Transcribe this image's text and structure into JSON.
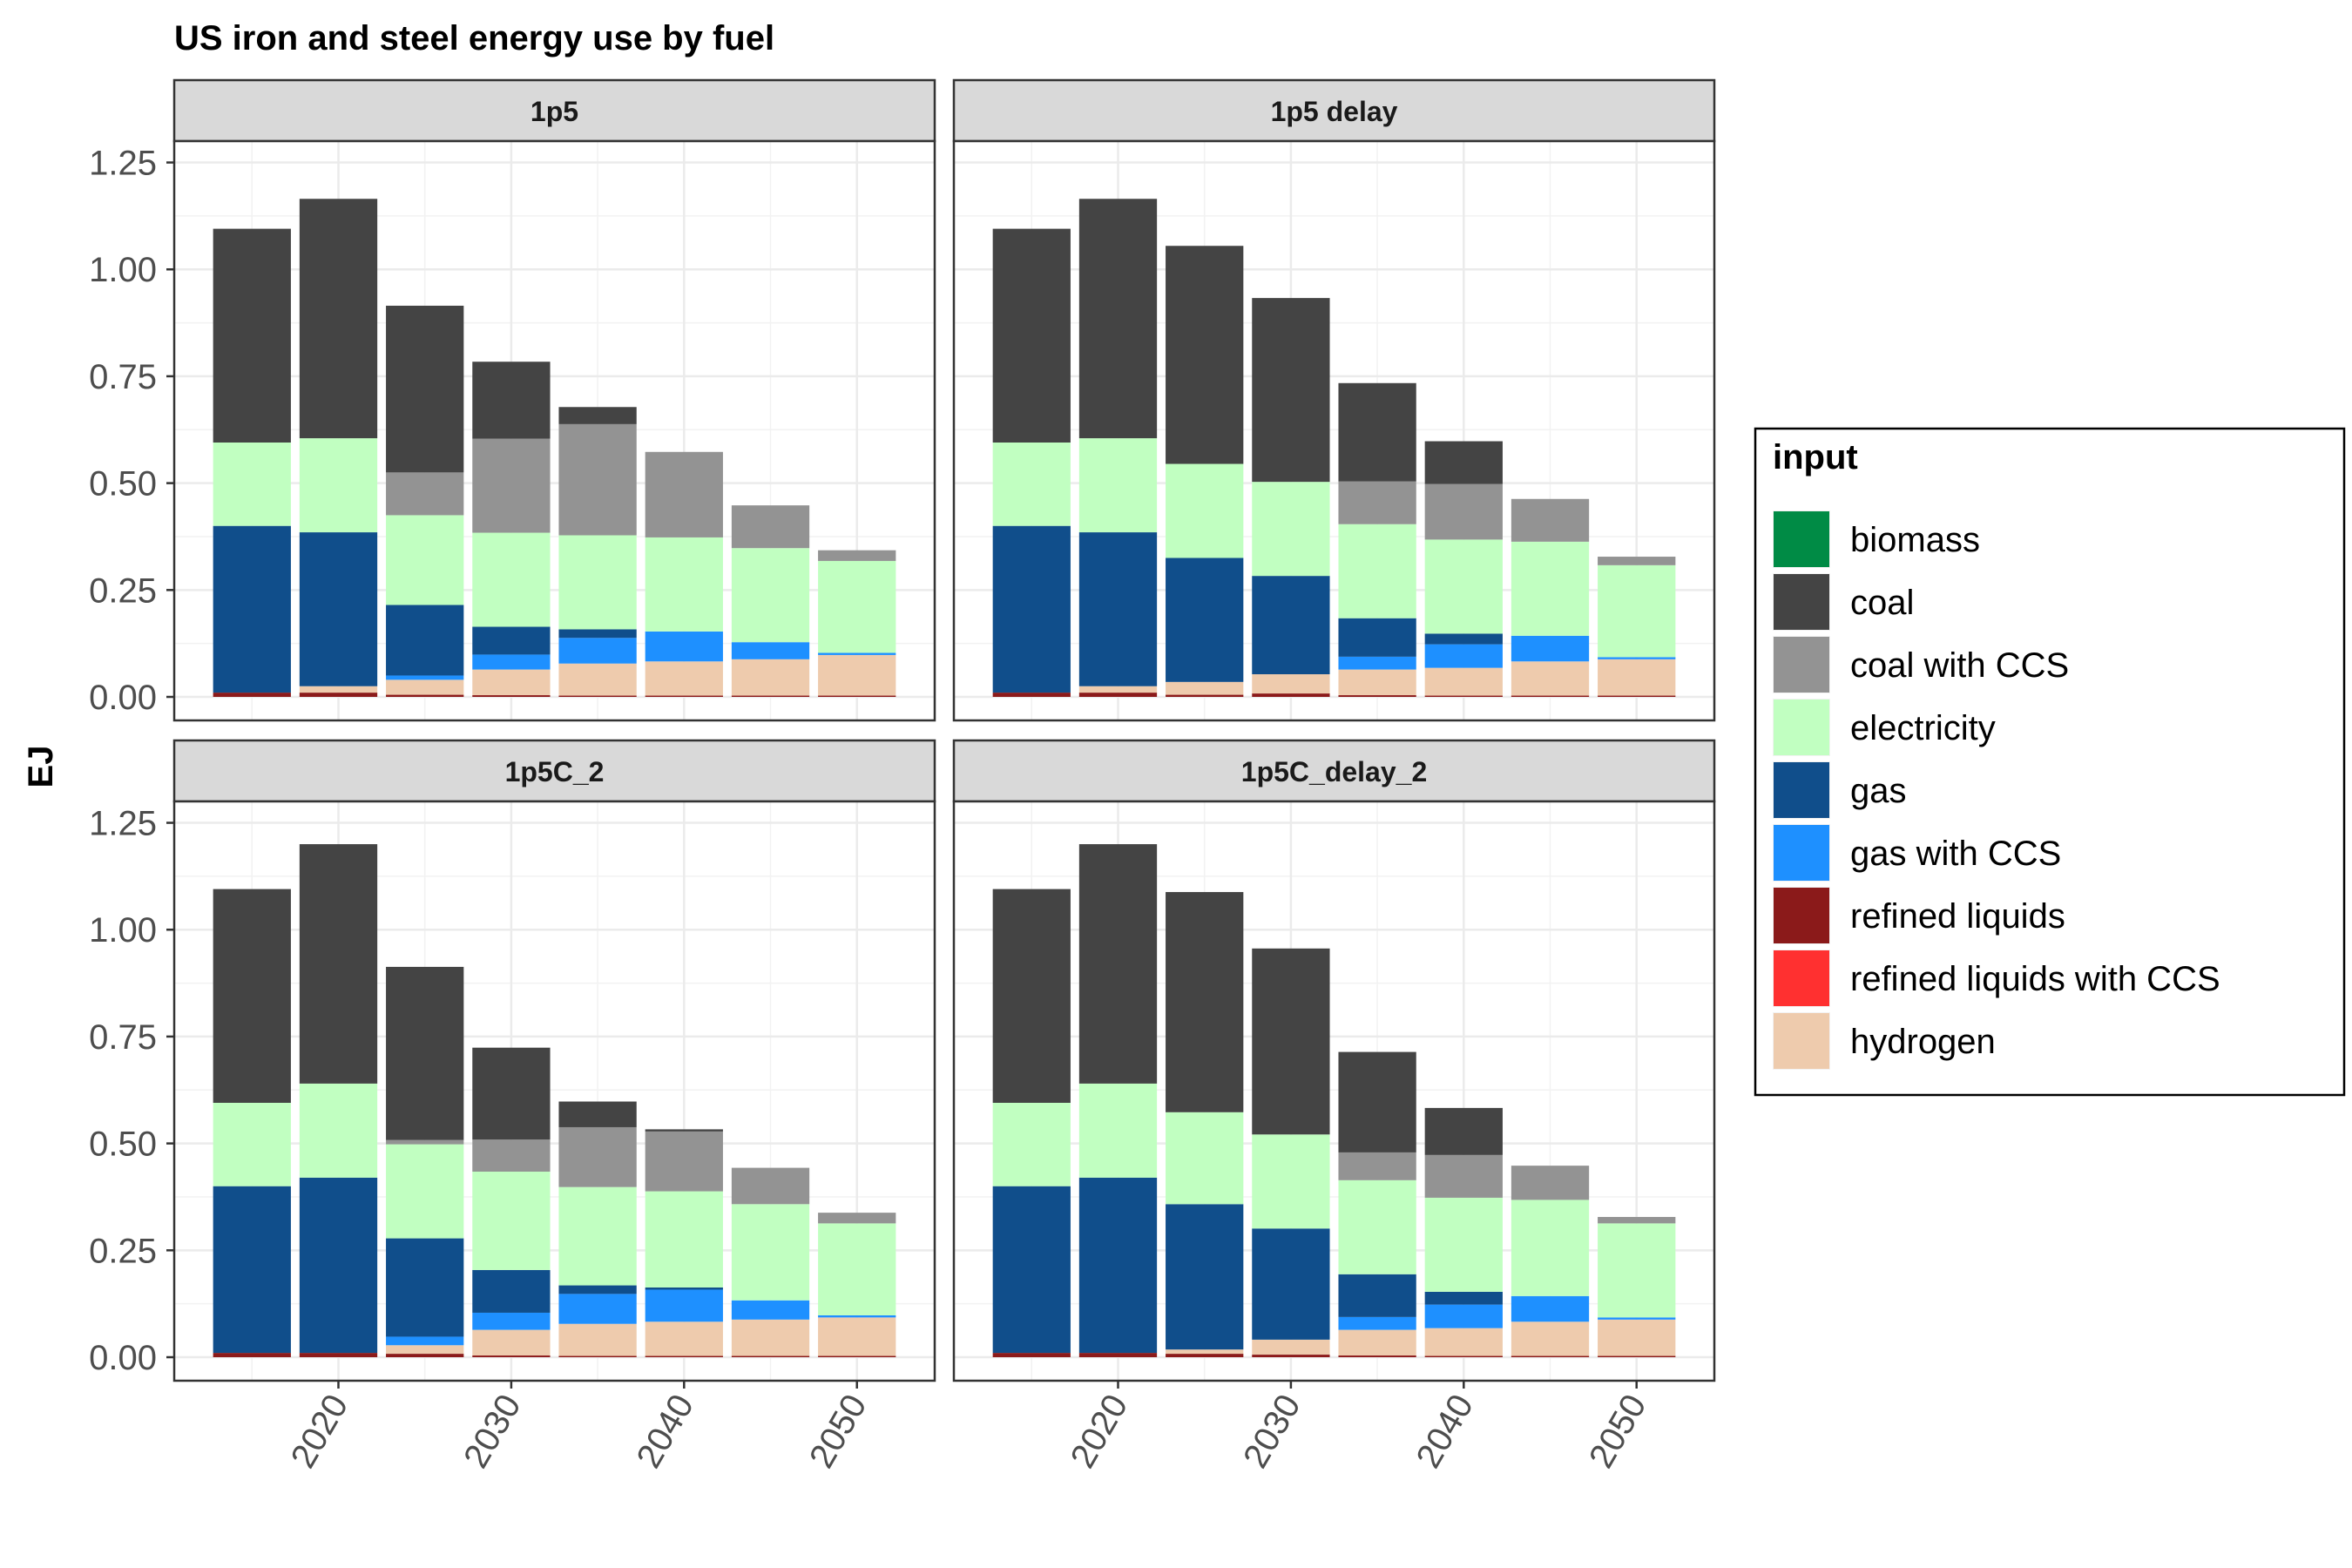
{
  "chart_data": {
    "type": "bar",
    "stacked": true,
    "faceted": true,
    "title": "US iron and steel energy use by fuel",
    "xlabel": "",
    "ylabel": "EJ",
    "legend_title": "input",
    "legend_position": "right",
    "x": [
      2015,
      2020,
      2025,
      2030,
      2035,
      2040,
      2045,
      2050
    ],
    "x_ticks": [
      "2020",
      "2030",
      "2040",
      "2050"
    ],
    "xlim": [
      2010.5,
      2054.5
    ],
    "y_ticks": [
      "0.00",
      "0.25",
      "0.50",
      "0.75",
      "1.00",
      "1.25"
    ],
    "ylim": [
      -0.055,
      1.3
    ],
    "grid": true,
    "series": [
      {
        "name": "biomass",
        "color": "#008B45"
      },
      {
        "name": "coal",
        "color": "#444444"
      },
      {
        "name": "coal with CCS",
        "color": "#939393"
      },
      {
        "name": "electricity",
        "color": "#C1FFC1"
      },
      {
        "name": "gas",
        "color": "#104E8B"
      },
      {
        "name": "gas with CCS",
        "color": "#1E90FF"
      },
      {
        "name": "refined liquids",
        "color": "#8B1A1A"
      },
      {
        "name": "refined liquids with CCS",
        "color": "#FF3030"
      },
      {
        "name": "hydrogen",
        "color": "#EECBAD"
      }
    ],
    "stack_order_bottom_to_top": [
      "refined liquids with CCS",
      "refined liquids",
      "hydrogen",
      "gas with CCS",
      "gas",
      "electricity",
      "coal with CCS",
      "coal",
      "biomass"
    ],
    "panels": [
      {
        "label": "1p5",
        "values": {
          "biomass": [
            0,
            0,
            0,
            0,
            0,
            0,
            0,
            0
          ],
          "coal": [
            0.5,
            0.56,
            0.39,
            0.18,
            0.04,
            0,
            0,
            0
          ],
          "coal with CCS": [
            0,
            0,
            0.1,
            0.22,
            0.26,
            0.2,
            0.1,
            0.025
          ],
          "electricity": [
            0.195,
            0.22,
            0.21,
            0.22,
            0.22,
            0.22,
            0.22,
            0.215
          ],
          "gas": [
            0.39,
            0.36,
            0.165,
            0.065,
            0.02,
            0,
            0,
            0
          ],
          "gas with CCS": [
            0,
            0,
            0.01,
            0.035,
            0.06,
            0.07,
            0.04,
            0.005
          ],
          "refined liquids": [
            0.01,
            0.01,
            0.005,
            0.004,
            0.003,
            0.003,
            0.003,
            0.003
          ],
          "refined liquids with CCS": [
            0,
            0,
            0,
            0,
            0,
            0,
            0,
            0
          ],
          "hydrogen": [
            0,
            0.015,
            0.035,
            0.06,
            0.075,
            0.08,
            0.085,
            0.095
          ]
        }
      },
      {
        "label": "1p5 delay",
        "values": {
          "biomass": [
            0,
            0,
            0,
            0,
            0,
            0,
            0,
            0
          ],
          "coal": [
            0.5,
            0.56,
            0.51,
            0.43,
            0.23,
            0.1,
            0,
            0
          ],
          "coal with CCS": [
            0,
            0,
            0,
            0,
            0.1,
            0.13,
            0.1,
            0.02
          ],
          "electricity": [
            0.195,
            0.22,
            0.22,
            0.22,
            0.22,
            0.22,
            0.22,
            0.215
          ],
          "gas": [
            0.39,
            0.36,
            0.29,
            0.23,
            0.09,
            0.025,
            0,
            0
          ],
          "gas with CCS": [
            0,
            0,
            0,
            0,
            0.03,
            0.055,
            0.06,
            0.005
          ],
          "refined liquids": [
            0.01,
            0.01,
            0.005,
            0.008,
            0.004,
            0.003,
            0.003,
            0.003
          ],
          "refined liquids with CCS": [
            0,
            0,
            0,
            0,
            0,
            0,
            0,
            0
          ],
          "hydrogen": [
            0,
            0.015,
            0.03,
            0.045,
            0.06,
            0.065,
            0.08,
            0.085
          ]
        }
      },
      {
        "label": "1p5C_2",
        "values": {
          "biomass": [
            0,
            0,
            0,
            0,
            0,
            0,
            0,
            0
          ],
          "coal": [
            0.5,
            0.56,
            0.405,
            0.215,
            0.06,
            0.005,
            0,
            0
          ],
          "coal with CCS": [
            0,
            0,
            0.01,
            0.075,
            0.14,
            0.14,
            0.085,
            0.025
          ],
          "electricity": [
            0.195,
            0.22,
            0.22,
            0.23,
            0.23,
            0.225,
            0.225,
            0.215
          ],
          "gas": [
            0.39,
            0.41,
            0.23,
            0.1,
            0.02,
            0.005,
            0,
            0
          ],
          "gas with CCS": [
            0,
            0,
            0.02,
            0.04,
            0.07,
            0.075,
            0.045,
            0.005
          ],
          "refined liquids": [
            0.01,
            0.01,
            0.008,
            0.004,
            0.003,
            0.003,
            0.003,
            0.003
          ],
          "refined liquids with CCS": [
            0,
            0,
            0,
            0,
            0,
            0,
            0,
            0
          ],
          "hydrogen": [
            0,
            0,
            0.02,
            0.06,
            0.075,
            0.08,
            0.085,
            0.09
          ]
        }
      },
      {
        "label": "1p5C_delay_2",
        "values": {
          "biomass": [
            0,
            0,
            0,
            0,
            0,
            0,
            0,
            0
          ],
          "coal": [
            0.5,
            0.56,
            0.515,
            0.435,
            0.235,
            0.11,
            0,
            0
          ],
          "coal with CCS": [
            0,
            0,
            0,
            0,
            0.065,
            0.1,
            0.08,
            0.015
          ],
          "electricity": [
            0.195,
            0.22,
            0.215,
            0.22,
            0.22,
            0.22,
            0.225,
            0.22
          ],
          "gas": [
            0.39,
            0.41,
            0.34,
            0.26,
            0.1,
            0.03,
            0,
            0
          ],
          "gas with CCS": [
            0,
            0,
            0,
            0,
            0.03,
            0.055,
            0.06,
            0.005
          ],
          "refined liquids": [
            0.01,
            0.01,
            0.008,
            0.006,
            0.004,
            0.003,
            0.003,
            0.003
          ],
          "refined liquids with CCS": [
            0,
            0,
            0,
            0,
            0,
            0,
            0,
            0
          ],
          "hydrogen": [
            0,
            0,
            0.01,
            0.035,
            0.06,
            0.065,
            0.08,
            0.085
          ]
        }
      }
    ]
  }
}
